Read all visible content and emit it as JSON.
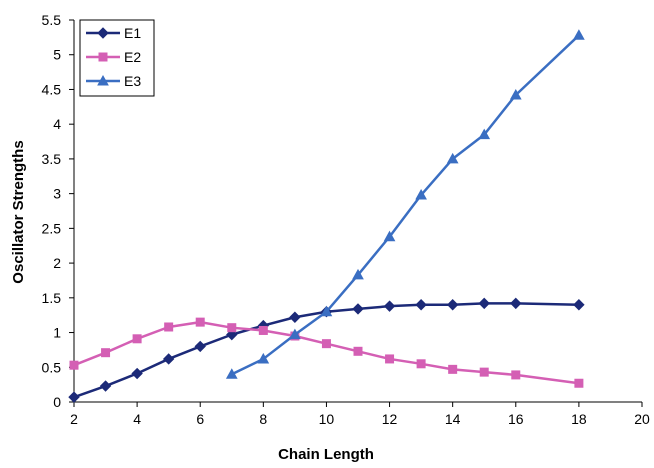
{
  "chart_data": {
    "type": "line",
    "xlabel": "Chain Length",
    "ylabel": "Oscillator Strengths",
    "xlim": [
      2,
      20
    ],
    "ylim": [
      0,
      5.5
    ],
    "xticks": [
      2,
      4,
      6,
      8,
      10,
      12,
      14,
      16,
      18,
      20
    ],
    "yticks": [
      0,
      0.5,
      1,
      1.5,
      2,
      2.5,
      3,
      3.5,
      4,
      4.5,
      5,
      5.5
    ],
    "grid": false,
    "legend_position": "top-left",
    "series": [
      {
        "name": "E1",
        "color": "#1c2a78",
        "marker": "diamond",
        "x": [
          2,
          3,
          4,
          5,
          6,
          7,
          8,
          9,
          10,
          11,
          12,
          13,
          14,
          15,
          16,
          18
        ],
        "y": [
          0.07,
          0.23,
          0.41,
          0.62,
          0.8,
          0.97,
          1.1,
          1.22,
          1.3,
          1.34,
          1.38,
          1.4,
          1.4,
          1.42,
          1.42,
          1.4
        ]
      },
      {
        "name": "E2",
        "color": "#d45fb4",
        "marker": "square",
        "x": [
          2,
          3,
          4,
          5,
          6,
          7,
          8,
          9,
          10,
          11,
          12,
          13,
          14,
          15,
          16,
          18
        ],
        "y": [
          0.53,
          0.71,
          0.91,
          1.08,
          1.15,
          1.07,
          1.03,
          0.95,
          0.84,
          0.73,
          0.62,
          0.55,
          0.47,
          0.43,
          0.39,
          0.27
        ]
      },
      {
        "name": "E3",
        "color": "#3a6ec2",
        "marker": "triangle",
        "x": [
          7,
          8,
          9,
          10,
          11,
          12,
          13,
          14,
          15,
          16,
          18
        ],
        "y": [
          0.4,
          0.62,
          0.97,
          1.3,
          1.83,
          2.38,
          2.98,
          3.5,
          3.85,
          4.42,
          5.28
        ]
      }
    ]
  }
}
